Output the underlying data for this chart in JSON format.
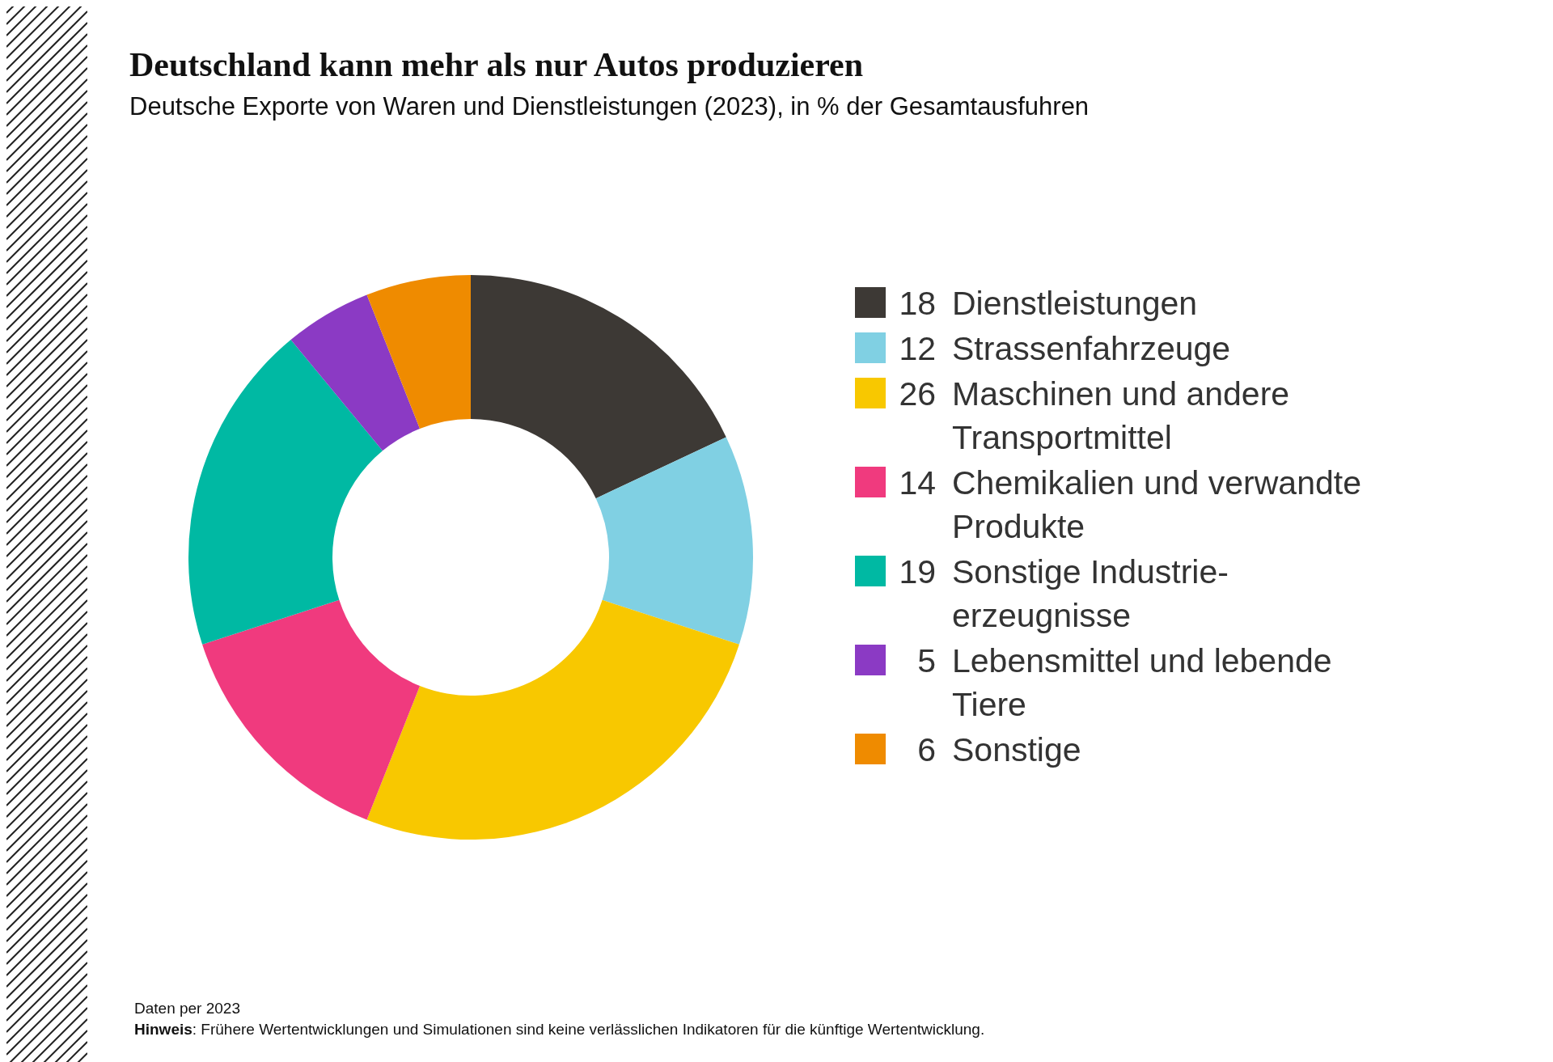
{
  "chart_data": {
    "type": "donut",
    "title": "Deutschland kann mehr als nur Autos produzieren",
    "subtitle": "Deutsche Exporte von Waren und Dienstleistungen (2023), in % der Gesamtausfuhren",
    "categories": [
      "Dienstleistungen",
      "Strassenfahrzeuge",
      "Maschinen und andere Transportmittel",
      "Chemikalien und verwandte Produkte",
      "Sonstige Industrie-erzeugnisse",
      "Lebensmittel und lebende Tiere",
      "Sonstige"
    ],
    "values": [
      18,
      12,
      26,
      14,
      19,
      5,
      6
    ],
    "colors": [
      "#3d3935",
      "#80d0e3",
      "#f8c800",
      "#f03a7e",
      "#00b9a3",
      "#8b3ac4",
      "#ef8b00"
    ],
    "data_labels": true,
    "legend": "right",
    "annotations": [
      "Daten per 2023",
      "Hinweis: Frühere Wertentwicklungen und Simulationen sind keine verlässlichen Indikatoren für die künftige Wertentwicklung."
    ]
  }
}
